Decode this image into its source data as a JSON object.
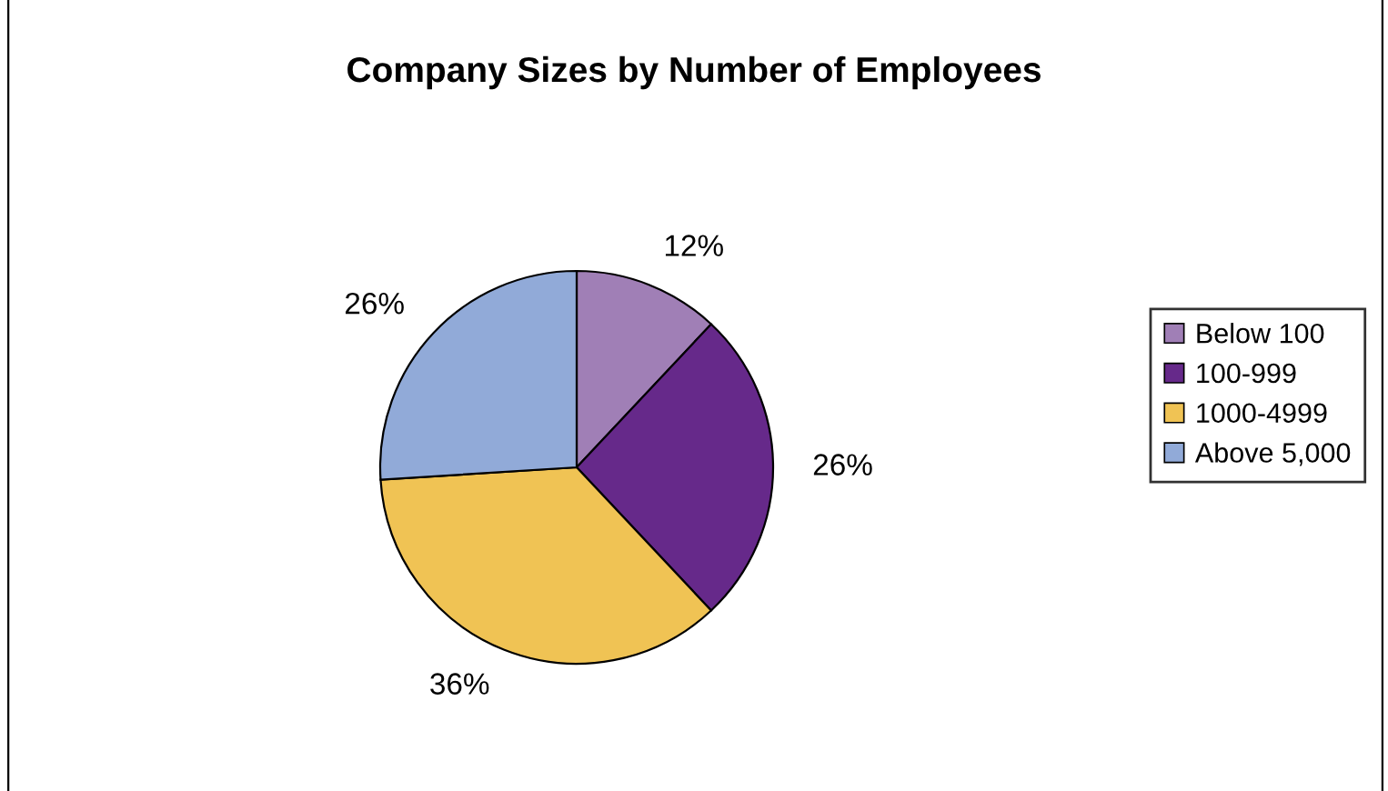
{
  "chart_data": {
    "type": "pie",
    "title": "Company Sizes by Number of Employees",
    "categories": [
      "Below 100",
      "100-999",
      "1000-4999",
      "Above 5,000"
    ],
    "values": [
      12,
      26,
      36,
      26
    ],
    "colors": [
      "#a07fb6",
      "#66298a",
      "#f0c354",
      "#91aad8"
    ],
    "value_labels": [
      "12%",
      "26%",
      "36%",
      "26%"
    ],
    "legend": "right"
  }
}
